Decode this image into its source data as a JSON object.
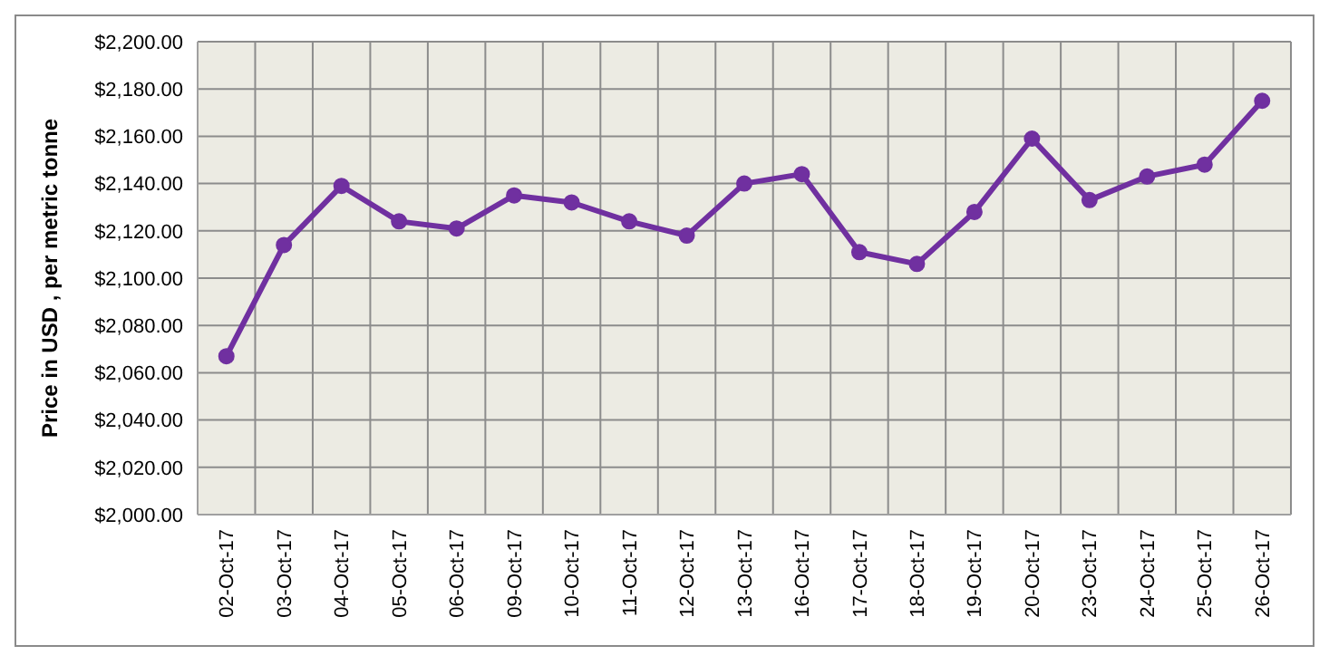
{
  "chart_data": {
    "type": "line",
    "ylabel": "Price in USD , per metric tonne",
    "categories": [
      "02-Oct-17",
      "03-Oct-17",
      "04-Oct-17",
      "05-Oct-17",
      "06-Oct-17",
      "09-Oct-17",
      "10-Oct-17",
      "11-Oct-17",
      "12-Oct-17",
      "13-Oct-17",
      "16-Oct-17",
      "17-Oct-17",
      "18-Oct-17",
      "19-Oct-17",
      "20-Oct-17",
      "23-Oct-17",
      "24-Oct-17",
      "25-Oct-17",
      "26-Oct-17"
    ],
    "series": [
      {
        "color": "#7030a0",
        "values": [
          2067,
          2114,
          2139,
          2124,
          2121,
          2135,
          2132,
          2124,
          2118,
          2140,
          2144,
          2111,
          2106,
          2128,
          2159,
          2133,
          2143,
          2148,
          2175
        ]
      }
    ],
    "ylim": [
      2000,
      2200
    ],
    "yticks": [
      {
        "value": 2000,
        "label": "$2,000.00"
      },
      {
        "value": 2020,
        "label": "$2,020.00"
      },
      {
        "value": 2040,
        "label": "$2,040.00"
      },
      {
        "value": 2060,
        "label": "$2,060.00"
      },
      {
        "value": 2080,
        "label": "$2,080.00"
      },
      {
        "value": 2100,
        "label": "$2,100.00"
      },
      {
        "value": 2120,
        "label": "$2,120.00"
      },
      {
        "value": 2140,
        "label": "$2,140.00"
      },
      {
        "value": 2160,
        "label": "$2,160.00"
      },
      {
        "value": 2180,
        "label": "$2,180.00"
      },
      {
        "value": 2200,
        "label": "$2,200.00"
      }
    ],
    "grid": true,
    "marker": "circle",
    "line_style": "solid"
  }
}
